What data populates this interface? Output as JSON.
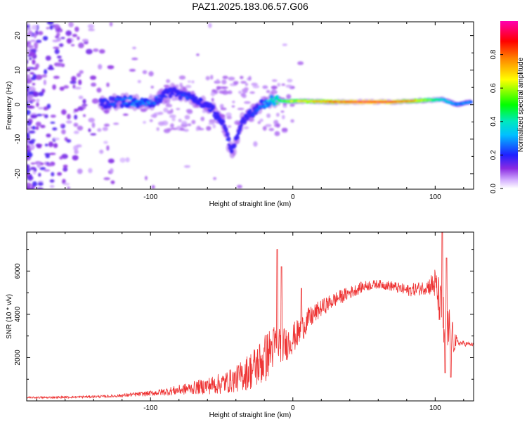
{
  "title": "PAZ1.2025.183.06.57.G06",
  "chart_data": [
    {
      "type": "heatmap",
      "xlabel": "Height of straight line (km)",
      "ylabel": "Frequency (Hz)",
      "xlim": [
        -187,
        127
      ],
      "ylim": [
        -24.5,
        24
      ],
      "x_ticks": [
        -100,
        0,
        100
      ],
      "y_ticks": [
        -20,
        -10,
        0,
        10,
        20
      ],
      "colorbar": {
        "label": "Normalized spectral amplitude",
        "range": [
          0,
          1
        ],
        "ticks": [
          "0.0",
          "0.2",
          "0.4",
          "0.6",
          "0.8"
        ],
        "colormap": "rainbow (magenta - blue - cyan - green - yellow - red - magenta)"
      },
      "ridge": [
        {
          "x": -135,
          "y": 0.5,
          "amp": 0.2
        },
        {
          "x": -125,
          "y": 0.8,
          "amp": 0.25
        },
        {
          "x": -115,
          "y": 1.0,
          "amp": 0.3
        },
        {
          "x": -105,
          "y": 0.0,
          "amp": 0.3
        },
        {
          "x": -95,
          "y": 1.5,
          "amp": 0.25
        },
        {
          "x": -85,
          "y": 4.0,
          "amp": 0.2
        },
        {
          "x": -75,
          "y": 2.5,
          "amp": 0.25
        },
        {
          "x": -65,
          "y": 1.0,
          "amp": 0.2
        },
        {
          "x": -55,
          "y": -2.0,
          "amp": 0.2
        },
        {
          "x": -48,
          "y": -6.0,
          "amp": 0.2
        },
        {
          "x": -43,
          "y": -14.5,
          "amp": 0.2
        },
        {
          "x": -35,
          "y": -4.0,
          "amp": 0.2
        },
        {
          "x": -25,
          "y": -1.0,
          "amp": 0.25
        },
        {
          "x": -15,
          "y": 1.5,
          "amp": 0.4
        },
        {
          "x": -5,
          "y": 1.0,
          "amp": 0.6
        },
        {
          "x": 10,
          "y": 1.0,
          "amp": 0.7
        },
        {
          "x": 30,
          "y": 0.8,
          "amp": 0.85
        },
        {
          "x": 50,
          "y": 0.8,
          "amp": 0.95
        },
        {
          "x": 70,
          "y": 0.8,
          "amp": 0.9
        },
        {
          "x": 90,
          "y": 1.2,
          "amp": 0.7
        },
        {
          "x": 105,
          "y": 1.5,
          "amp": 0.4
        },
        {
          "x": 115,
          "y": 0.0,
          "amp": 0.3
        },
        {
          "x": 125,
          "y": 0.8,
          "amp": 0.3
        }
      ]
    },
    {
      "type": "line",
      "xlabel": "Height of straight line (km)",
      "ylabel": "SNR (10 * v/v)",
      "xlim": [
        -187,
        127
      ],
      "ylim": [
        0,
        7800
      ],
      "x_ticks": [
        -100,
        0,
        100
      ],
      "y_ticks": [
        2000,
        4000,
        6000
      ],
      "color": "#ee3333",
      "series": [
        {
          "x": [
            -187,
            -170,
            -150,
            -140,
            -130,
            -120,
            -110,
            -100,
            -90,
            -80,
            -70,
            -60,
            -50,
            -40,
            -30,
            -20,
            -15,
            -10,
            -5,
            0,
            5,
            10,
            20,
            30,
            40,
            50,
            60,
            70,
            80,
            90,
            100,
            105,
            108,
            110,
            112,
            115,
            120,
            127
          ],
          "y": [
            150,
            160,
            180,
            200,
            210,
            250,
            300,
            350,
            420,
            500,
            600,
            700,
            800,
            1000,
            1400,
            1900,
            2400,
            2700,
            2600,
            2900,
            3200,
            3700,
            4300,
            4700,
            5000,
            5300,
            5400,
            5300,
            5100,
            5200,
            5400,
            4000,
            2500,
            3500,
            2900,
            2700,
            2650,
            2600
          ]
        }
      ],
      "noise_amplitude": [
        {
          "x": -187,
          "amp": 40
        },
        {
          "x": -130,
          "amp": 60
        },
        {
          "x": -100,
          "amp": 120
        },
        {
          "x": -70,
          "amp": 300
        },
        {
          "x": -40,
          "amp": 600
        },
        {
          "x": -20,
          "amp": 1200
        },
        {
          "x": -5,
          "amp": 800
        },
        {
          "x": 20,
          "amp": 400
        },
        {
          "x": 60,
          "amp": 200
        },
        {
          "x": 95,
          "amp": 350
        },
        {
          "x": 108,
          "amp": 1500
        },
        {
          "x": 116,
          "amp": 150
        },
        {
          "x": 127,
          "amp": 80
        }
      ],
      "spikes": [
        {
          "x": -11,
          "y": 7000
        },
        {
          "x": -8,
          "y": 6200
        },
        {
          "x": 6,
          "y": 5200
        },
        {
          "x": 105,
          "y": 7800
        },
        {
          "x": 108,
          "y": 6600
        },
        {
          "x": 107,
          "y": 1300
        },
        {
          "x": 111,
          "y": 1100
        }
      ]
    }
  ]
}
